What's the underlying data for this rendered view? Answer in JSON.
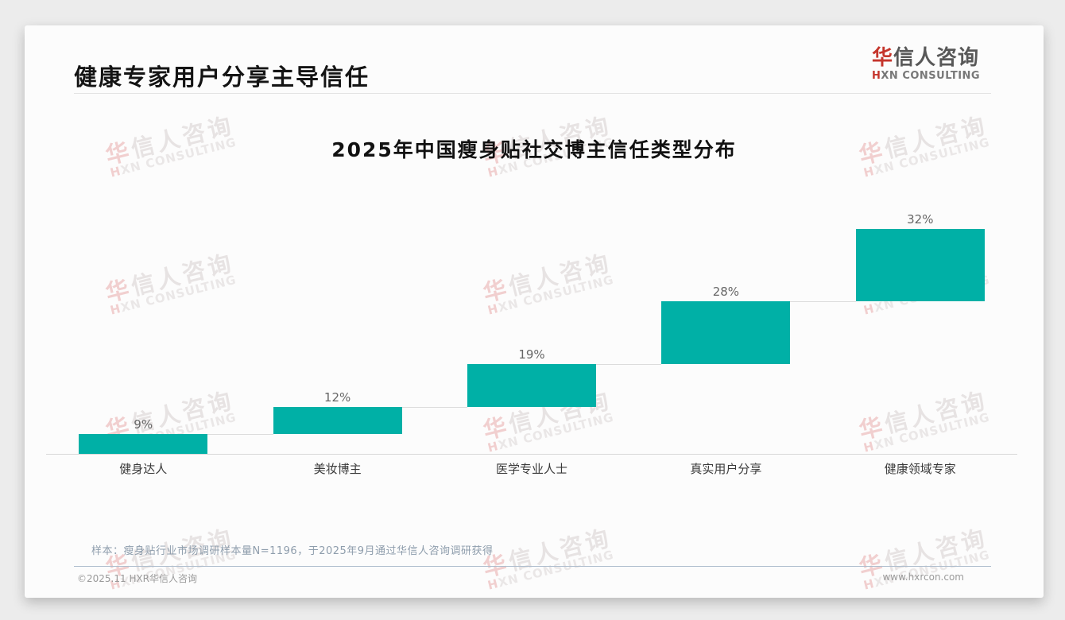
{
  "header": {
    "title": "健康专家用户分享主导信任"
  },
  "logo": {
    "cn_first": "华",
    "cn_rest": "信人咨询",
    "en_first": "H",
    "en_rest": "XN CONSULTING"
  },
  "watermark": {
    "cn_first": "华",
    "cn_rest": "信人咨询",
    "en_first": "H",
    "en_rest": "XN CONSULTING"
  },
  "footnote": "样本：瘦身贴行业市场调研样本量N=1196，于2025年9月通过华信人咨询调研获得",
  "footer": {
    "left": "©2025.11 HXR华信人咨询",
    "right": "www.hxrcon.com"
  },
  "chart_data": {
    "type": "bar",
    "subtype": "waterfall",
    "title": "2025年中国瘦身贴社交博主信任类型分布",
    "categories": [
      "健身达人",
      "美妆博主",
      "医学专业人士",
      "真实用户分享",
      "健康领域专家"
    ],
    "values": [
      9,
      12,
      19,
      28,
      32
    ],
    "value_labels": [
      "9%",
      "12%",
      "19%",
      "28%",
      "32%"
    ],
    "unit": "%",
    "total": 100,
    "ylim": [
      0,
      100
    ],
    "grid": false,
    "legend": false,
    "bar_color": "#00b0a6",
    "connector_color": "#dcdcdc",
    "axis_color": "#d9d9d9",
    "value_label_color": "#666666",
    "category_label_color": "#3a3a3a"
  }
}
